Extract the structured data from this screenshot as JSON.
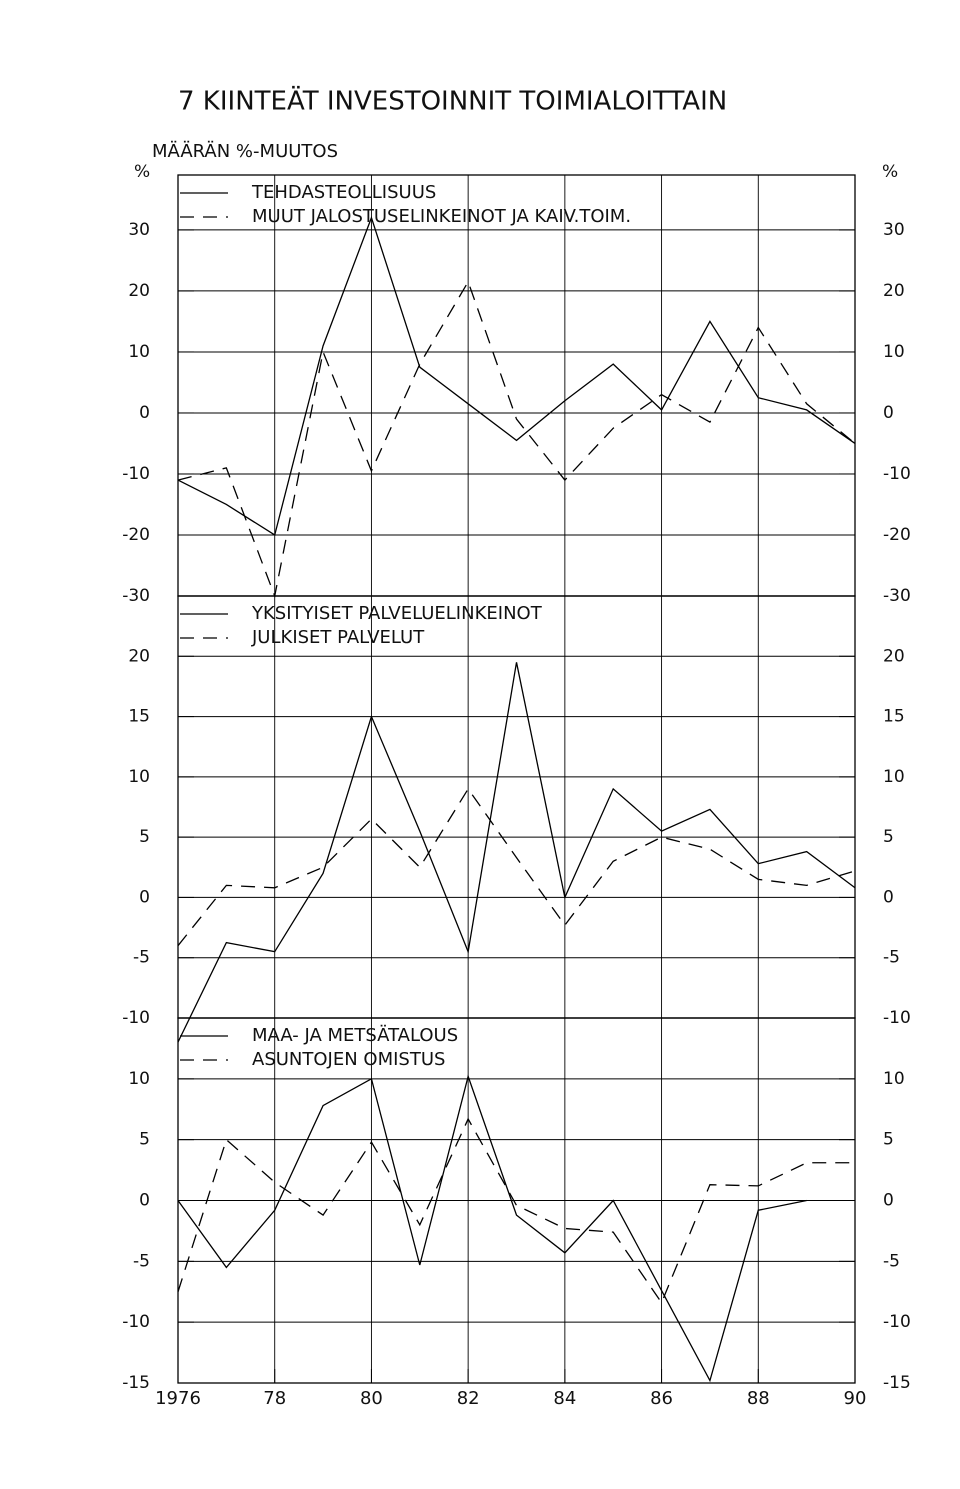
{
  "chart_data": [
    {
      "type": "line",
      "title": "7 KIINTEÄT INVESTOINNIT TOIMIALOITTAIN",
      "subtitle": "MÄÄRÄN %-MUUTOS",
      "y_label": "%",
      "x": [
        1976,
        1977,
        1978,
        1979,
        1980,
        1981,
        1982,
        1983,
        1984,
        1985,
        1986,
        1987,
        1988,
        1989,
        1990
      ],
      "series": [
        {
          "name": "TEHDASTEOLLISUUS",
          "color": "#000000",
          "style": "solid",
          "values": [
            -11,
            -15,
            -20,
            11,
            32,
            7.5,
            1.5,
            -4.5,
            2,
            8,
            0.5,
            15,
            2.5,
            0.5,
            -5
          ]
        },
        {
          "name": "MUUT JALOSTUSELINKEINOT JA KAIV.TOIM.",
          "color": "#000000",
          "style": "dashed",
          "values": [
            -11,
            -9,
            -30,
            10,
            -9.5,
            8,
            21.5,
            -1,
            -11,
            -2.5,
            3,
            -1.5,
            14,
            1.5,
            -5
          ]
        }
      ],
      "xlim": [
        1976,
        1990
      ],
      "ylim": [
        -30,
        39
      ],
      "yticks": [
        -30,
        -20,
        -10,
        0,
        10,
        20,
        30
      ],
      "grid": true,
      "legend": "top-left"
    },
    {
      "type": "line",
      "x": [
        1976,
        1977,
        1978,
        1979,
        1980,
        1981,
        1982,
        1983,
        1984,
        1985,
        1986,
        1987,
        1988,
        1989,
        1990
      ],
      "series": [
        {
          "name": "YKSITYISET PALVELUELINKEINOT",
          "color": "#000000",
          "style": "solid",
          "values": [
            -12,
            -3.75,
            -4.5,
            2,
            15,
            5.5,
            -4.5,
            19.5,
            0,
            9,
            5.5,
            7.3,
            2.8,
            3.8,
            0.8
          ]
        },
        {
          "name": "JULKISET PALVELUT",
          "color": "#000000",
          "style": "dashed",
          "values": [
            -4,
            1,
            0.8,
            2.5,
            6.5,
            2.5,
            9,
            3.3,
            -2.3,
            3,
            5,
            4,
            1.5,
            1,
            2.2
          ]
        }
      ],
      "xlim": [
        1976,
        1990
      ],
      "ylim": [
        -10,
        25
      ],
      "yticks": [
        -10,
        -5,
        0,
        5,
        10,
        15,
        20
      ],
      "grid": true,
      "legend": "top-left"
    },
    {
      "type": "line",
      "x": [
        1976,
        1977,
        1978,
        1979,
        1980,
        1981,
        1982,
        1983,
        1984,
        1985,
        1986,
        1987,
        1988,
        1989,
        1990
      ],
      "series": [
        {
          "name": "MAA- JA METSÄTALOUS",
          "color": "#000000",
          "style": "solid",
          "values": [
            0,
            -5.5,
            -0.8,
            7.8,
            10,
            -5.3,
            10.2,
            -1.2,
            -4.3,
            0,
            -7.4,
            -14.8,
            -0.8,
            0,
            null
          ]
        },
        {
          "name": "ASUNTOJEN OMISTUS",
          "color": "#000000",
          "style": "dashed",
          "values": [
            -7.5,
            5,
            1.5,
            -1.2,
            4.8,
            -2,
            6.7,
            -0.4,
            -2.3,
            -2.6,
            -8.4,
            1.3,
            1.2,
            3.1,
            3.1
          ]
        }
      ],
      "xlim": [
        1976,
        1990
      ],
      "ylim": [
        -15,
        15
      ],
      "yticks": [
        -15,
        -10,
        -5,
        0,
        5,
        10
      ],
      "xticks": [
        1976,
        {
          "value": 1978,
          "label": "78"
        },
        {
          "value": 1980,
          "label": "80"
        },
        {
          "value": 1982,
          "label": "82"
        },
        {
          "value": 1984,
          "label": "84"
        },
        {
          "value": 1986,
          "label": "86"
        },
        {
          "value": 1988,
          "label": "88"
        },
        {
          "value": 1990,
          "label": "90"
        }
      ],
      "grid": true,
      "legend": "top-left"
    }
  ]
}
